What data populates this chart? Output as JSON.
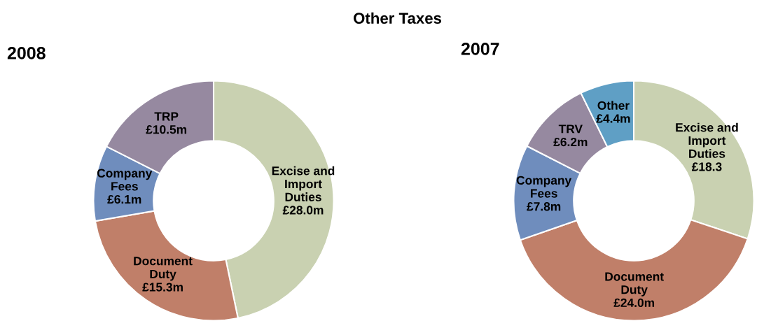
{
  "chart_data": [
    {
      "type": "donut",
      "title": "2008",
      "annotations": [
        "Other Taxes"
      ],
      "categories": [
        "Excise and\nImport\nDuties",
        "Document\nDuty",
        "Company\nFees",
        "TRP"
      ],
      "values": [
        28.0,
        15.3,
        6.1,
        10.5
      ],
      "value_labels": [
        "£28.0m",
        "£15.3m",
        "£6.1m",
        "£10.5m"
      ],
      "colors": [
        "#c9d1b1",
        "#c07f69",
        "#6f8dbd",
        "#9689a0"
      ]
    },
    {
      "type": "donut",
      "title": "2007",
      "categories": [
        "Excise and\nImport\nDuties",
        "Document\nDuty",
        "Company\nFees",
        "TRV",
        "Other"
      ],
      "values": [
        18.3,
        24.0,
        7.8,
        6.2,
        4.4
      ],
      "value_labels": [
        "£18.3",
        "£24.0m",
        "£7.8m",
        "£6.2m",
        "£4.4m"
      ],
      "colors": [
        "#c9d1b1",
        "#c07f69",
        "#6f8dbd",
        "#9689a0",
        "#5f9fc5"
      ]
    }
  ]
}
